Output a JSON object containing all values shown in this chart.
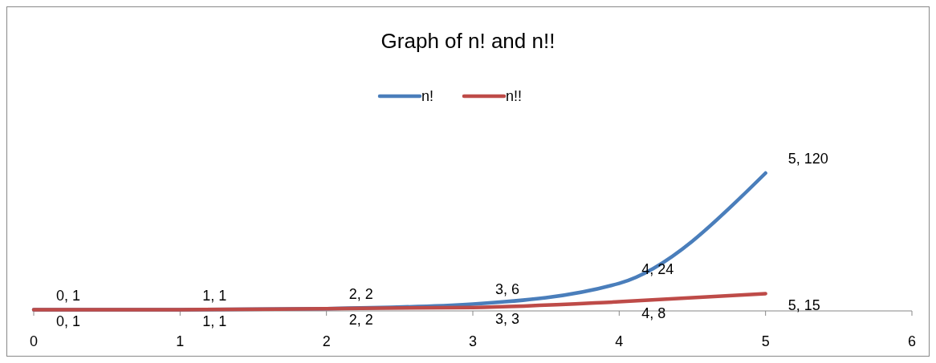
{
  "chart_data": {
    "type": "line",
    "title": "Graph of n! and n!!",
    "x": [
      0,
      1,
      2,
      3,
      4,
      5
    ],
    "xlim": [
      0,
      6
    ],
    "xticks": [
      0,
      1,
      2,
      3,
      4,
      5,
      6
    ],
    "tick_labels": "x",
    "legend": "top",
    "marker": "none",
    "line_style": "solid",
    "series": [
      {
        "name": "n!",
        "color": "#4a7ebb",
        "values": [
          1,
          1,
          2,
          6,
          24,
          120
        ],
        "value_labels": [
          "0, 1",
          "1, 1",
          "2, 2",
          "3, 6",
          "4, 24",
          "5, 120"
        ]
      },
      {
        "name": "n!!",
        "color": "#be4b48",
        "values": [
          1,
          1,
          2,
          3,
          8,
          15
        ],
        "value_labels": [
          "0, 1",
          "1, 1",
          "2, 2",
          "3, 3",
          "4, 8",
          "5, 15"
        ]
      }
    ]
  }
}
